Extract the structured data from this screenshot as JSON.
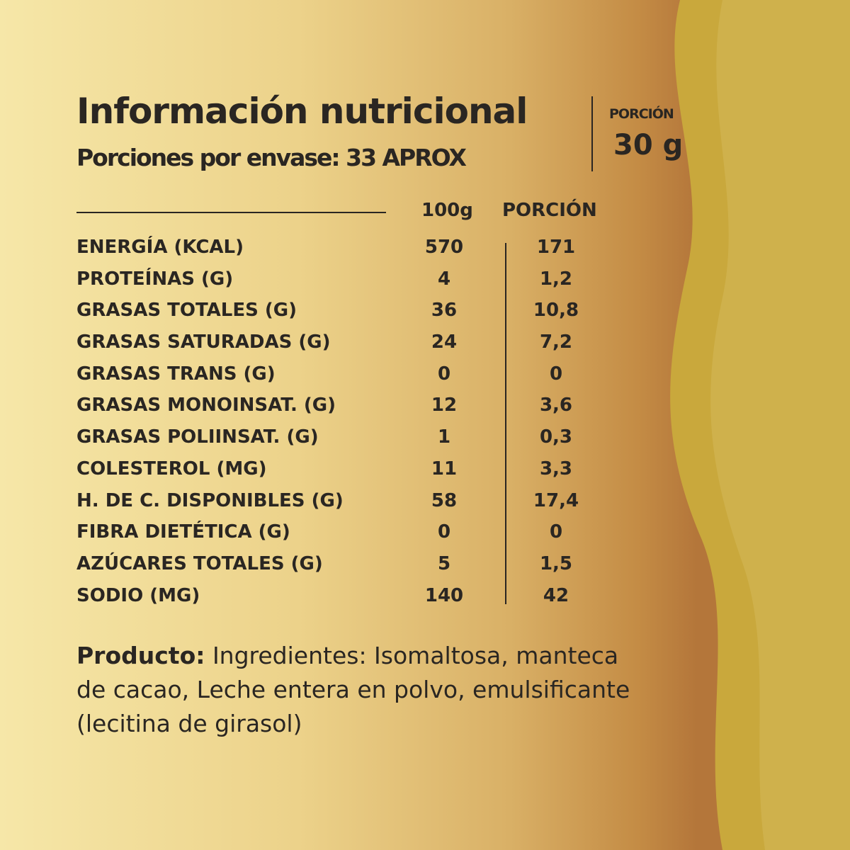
{
  "header": {
    "title": "Información nutricional",
    "servings_per_package": "Porciones por envase: 33 APROX",
    "portion_label": "PORCIÓN",
    "portion_value": "30 g"
  },
  "table": {
    "columns": [
      "100g",
      "PORCIÓN"
    ],
    "rows": [
      {
        "label": "ENERGÍA (KCAL)",
        "per100": "570",
        "portion": "171"
      },
      {
        "label": "PROTEÍNAS (G)",
        "per100": "4",
        "portion": "1,2"
      },
      {
        "label": "GRASAS TOTALES (G)",
        "per100": "36",
        "portion": "10,8"
      },
      {
        "label": "GRASAS SATURADAS (G)",
        "per100": "24",
        "portion": "7,2"
      },
      {
        "label": "GRASAS TRANS (G)",
        "per100": "0",
        "portion": "0"
      },
      {
        "label": "GRASAS MONOINSAT. (G)",
        "per100": "12",
        "portion": "3,6"
      },
      {
        "label": "GRASAS POLIINSAT. (G)",
        "per100": "1",
        "portion": "0,3"
      },
      {
        "label": "COLESTEROL (MG)",
        "per100": "11",
        "portion": "3,3"
      },
      {
        "label": "H. DE C. DISPONIBLES (G)",
        "per100": "58",
        "portion": "17,4"
      },
      {
        "label": "FIBRA DIETÉTICA (G)",
        "per100": "0",
        "portion": "0"
      },
      {
        "label": "AZÚCARES TOTALES (G)",
        "per100": "5",
        "portion": "1,5"
      },
      {
        "label": "SODIO (MG)",
        "per100": "140",
        "portion": "42"
      }
    ]
  },
  "product": {
    "label": "Producto:",
    "text": " Ingredientes: Isomaltosa, manteca de cacao, Leche entera en polvo, emulsificante (lecitina de girasol)"
  },
  "colors": {
    "text": "#2a2622",
    "light": "#f6e7a8",
    "brown": "#b4763a",
    "olive": "#c9a83c"
  }
}
